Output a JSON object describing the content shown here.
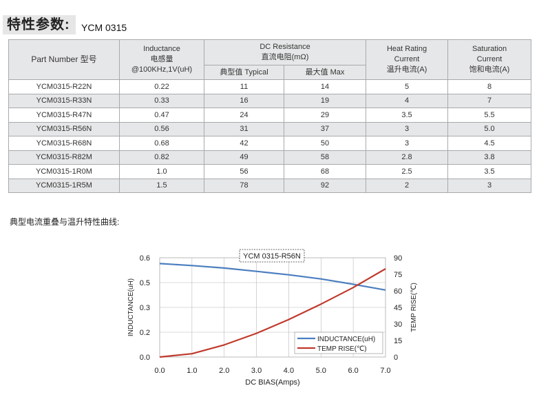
{
  "header": {
    "title": "特性参数:",
    "model": "YCM 0315"
  },
  "table": {
    "headers": {
      "part_number": "Part Number  型号",
      "inductance_l1": "Inductance",
      "inductance_l2": "电感量",
      "inductance_l3": "@100KHz,1V(uH)",
      "dcr_l1": "DC Resistance",
      "dcr_l2": "直流电阻(mΩ)",
      "dcr_typ": "典型值 Typical",
      "dcr_max": "最大值 Max",
      "heat_l1": "Heat Rating",
      "heat_l2": "Current",
      "heat_l3": "温升电流(A)",
      "sat_l1": "Saturation",
      "sat_l2": "Current",
      "sat_l3": "饱和电流(A)"
    },
    "rows": [
      {
        "part": "YCM0315-R22N",
        "inductance": "0.22",
        "dcr_typ": "11",
        "dcr_max": "14",
        "heat": "5",
        "sat": "8"
      },
      {
        "part": "YCM0315-R33N",
        "inductance": "0.33",
        "dcr_typ": "16",
        "dcr_max": "19",
        "heat": "4",
        "sat": "7"
      },
      {
        "part": "YCM0315-R47N",
        "inductance": "0.47",
        "dcr_typ": "24",
        "dcr_max": "29",
        "heat": "3.5",
        "sat": "5.5"
      },
      {
        "part": "YCM0315-R56N",
        "inductance": "0.56",
        "dcr_typ": "31",
        "dcr_max": "37",
        "heat": "3",
        "sat": "5.0"
      },
      {
        "part": "YCM0315-R68N",
        "inductance": "0.68",
        "dcr_typ": "42",
        "dcr_max": "50",
        "heat": "3",
        "sat": "4.5"
      },
      {
        "part": "YCM0315-R82M",
        "inductance": "0.82",
        "dcr_typ": "49",
        "dcr_max": "58",
        "heat": "2.8",
        "sat": "3.8"
      },
      {
        "part": "YCM0315-1R0M",
        "inductance": "1.0",
        "dcr_typ": "56",
        "dcr_max": "68",
        "heat": "2.5",
        "sat": "3.5"
      },
      {
        "part": "YCM0315-1R5M",
        "inductance": "1.5",
        "dcr_typ": "78",
        "dcr_max": "92",
        "heat": "2",
        "sat": "3"
      }
    ]
  },
  "chart_caption": "典型电流重叠与温升特性曲线:",
  "chart_data": {
    "type": "line",
    "title": "YCM 0315-R56N",
    "xlabel": "DC BIAS(Amps)",
    "ylabel": "INDUCTANCE(uH)",
    "y2label": "TEMP RISE(℃)",
    "xlim": [
      0,
      7
    ],
    "ylim": [
      0,
      0.6
    ],
    "y2lim": [
      0,
      90
    ],
    "x_ticks": [
      "0.0",
      "1.0",
      "2.0",
      "3.0",
      "4.0",
      "5.0",
      "6.0",
      "7.0"
    ],
    "y_ticks": [
      "0.0",
      "0.2",
      "0.3",
      "0.5",
      "0.6"
    ],
    "y2_ticks": [
      "0",
      "15",
      "30",
      "45",
      "60",
      "75",
      "90"
    ],
    "grid": true,
    "legend_position": "bottom-right",
    "series": [
      {
        "name": "INDUCTANCE(uH)",
        "axis": "left",
        "color": "#4a7ebf",
        "x": [
          0,
          1,
          2,
          3,
          4,
          5,
          6,
          7
        ],
        "y": [
          0.565,
          0.553,
          0.538,
          0.518,
          0.497,
          0.472,
          0.44,
          0.405
        ]
      },
      {
        "name": "TEMP RISE(℃)",
        "axis": "right",
        "color": "#c0392b",
        "x": [
          0,
          1,
          2,
          3,
          4,
          5,
          6,
          7
        ],
        "y": [
          0,
          3,
          11,
          21.5,
          34,
          48,
          63,
          80
        ]
      }
    ]
  }
}
